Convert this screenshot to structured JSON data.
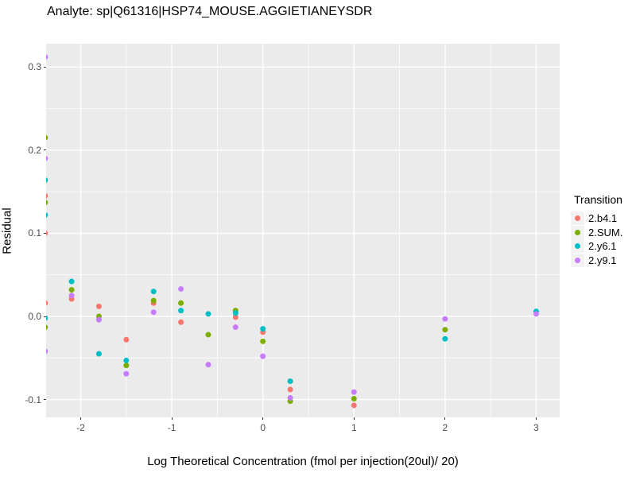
{
  "title": "Analyte: sp|Q61316|HSP74_MOUSE.AGGIETIANEYSDR",
  "chart_data": {
    "type": "scatter",
    "title": "Analyte: sp|Q61316|HSP74_MOUSE.AGGIETIANEYSDR",
    "xlabel": "Log Theoretical Concentration (fmol per injection(20ul)/ 20)",
    "ylabel": "Residual",
    "x_domain": [
      -2.38,
      3.258
    ],
    "y_domain": [
      -0.1215,
      0.328
    ],
    "x_ticks": [
      {
        "v": -2,
        "label": "-2"
      },
      {
        "v": -1,
        "label": "-1"
      },
      {
        "v": 0,
        "label": "0"
      },
      {
        "v": 1,
        "label": "1"
      },
      {
        "v": 2,
        "label": "2"
      },
      {
        "v": 3,
        "label": "3"
      }
    ],
    "y_ticks": [
      {
        "v": -0.1,
        "label": "-0.1"
      },
      {
        "v": 0.0,
        "label": "0.0"
      },
      {
        "v": 0.1,
        "label": "0.1"
      },
      {
        "v": 0.2,
        "label": "0.2"
      },
      {
        "v": 0.3,
        "label": "0.3"
      }
    ],
    "x_minor": [
      -1.5,
      -0.5,
      0.5,
      1.5,
      2.5
    ],
    "y_minor": [
      -0.05,
      0.05,
      0.15,
      0.25
    ],
    "grid": true,
    "panel_bg": "#EBEBEB",
    "grid_color": "#FFFFFF",
    "point_radius": 3.5,
    "legend": {
      "title": "Transition",
      "position": "right"
    },
    "series": [
      {
        "name": "2.b4.1",
        "color": "#F8766D",
        "points": [
          [
            -2.39,
            0.145
          ],
          [
            -2.39,
            0.1
          ],
          [
            -2.39,
            0.016
          ],
          [
            -2.1,
            0.021
          ],
          [
            -1.8,
            0.012
          ],
          [
            -1.5,
            -0.028
          ],
          [
            -1.2,
            0.016
          ],
          [
            -0.9,
            -0.007
          ],
          [
            -0.3,
            -0.001
          ],
          [
            0,
            -0.019
          ],
          [
            0.3,
            -0.088
          ],
          [
            1,
            -0.107
          ]
        ]
      },
      {
        "name": "2.SUM.",
        "color": "#7CAE00",
        "points": [
          [
            -2.39,
            0.215
          ],
          [
            -2.39,
            0.137
          ],
          [
            -2.39,
            -0.013
          ],
          [
            -2.1,
            0.032
          ],
          [
            -1.8,
            0.0
          ],
          [
            -1.5,
            -0.059
          ],
          [
            -1.2,
            0.019
          ],
          [
            -0.9,
            0.016
          ],
          [
            -0.6,
            -0.022
          ],
          [
            -0.3,
            0.007
          ],
          [
            0,
            -0.03
          ],
          [
            0.3,
            -0.102
          ],
          [
            1,
            -0.099
          ],
          [
            2,
            -0.016
          ]
        ]
      },
      {
        "name": "2.y6.1",
        "color": "#00BFC4",
        "points": [
          [
            -2.39,
            0.164
          ],
          [
            -2.39,
            0.122
          ],
          [
            -2.39,
            -0.002
          ],
          [
            -2.1,
            0.042
          ],
          [
            -1.8,
            -0.045
          ],
          [
            -1.5,
            -0.053
          ],
          [
            -1.2,
            0.03
          ],
          [
            -0.9,
            0.007
          ],
          [
            -0.6,
            0.003
          ],
          [
            -0.3,
            0.004
          ],
          [
            0,
            -0.015
          ],
          [
            0.3,
            -0.078
          ],
          [
            2,
            -0.027
          ],
          [
            3,
            0.006
          ]
        ]
      },
      {
        "name": "2.y9.1",
        "color": "#C77CFF",
        "points": [
          [
            -2.39,
            0.312
          ],
          [
            -2.39,
            0.19
          ],
          [
            -2.39,
            -0.042
          ],
          [
            -2.1,
            0.025
          ],
          [
            -1.8,
            -0.004
          ],
          [
            -1.5,
            -0.069
          ],
          [
            -1.2,
            0.005
          ],
          [
            -0.9,
            0.033
          ],
          [
            -0.6,
            -0.058
          ],
          [
            -0.3,
            -0.013
          ],
          [
            0,
            -0.048
          ],
          [
            0.3,
            -0.098
          ],
          [
            1,
            -0.091
          ],
          [
            2,
            -0.003
          ],
          [
            3,
            0.003
          ]
        ]
      }
    ]
  }
}
